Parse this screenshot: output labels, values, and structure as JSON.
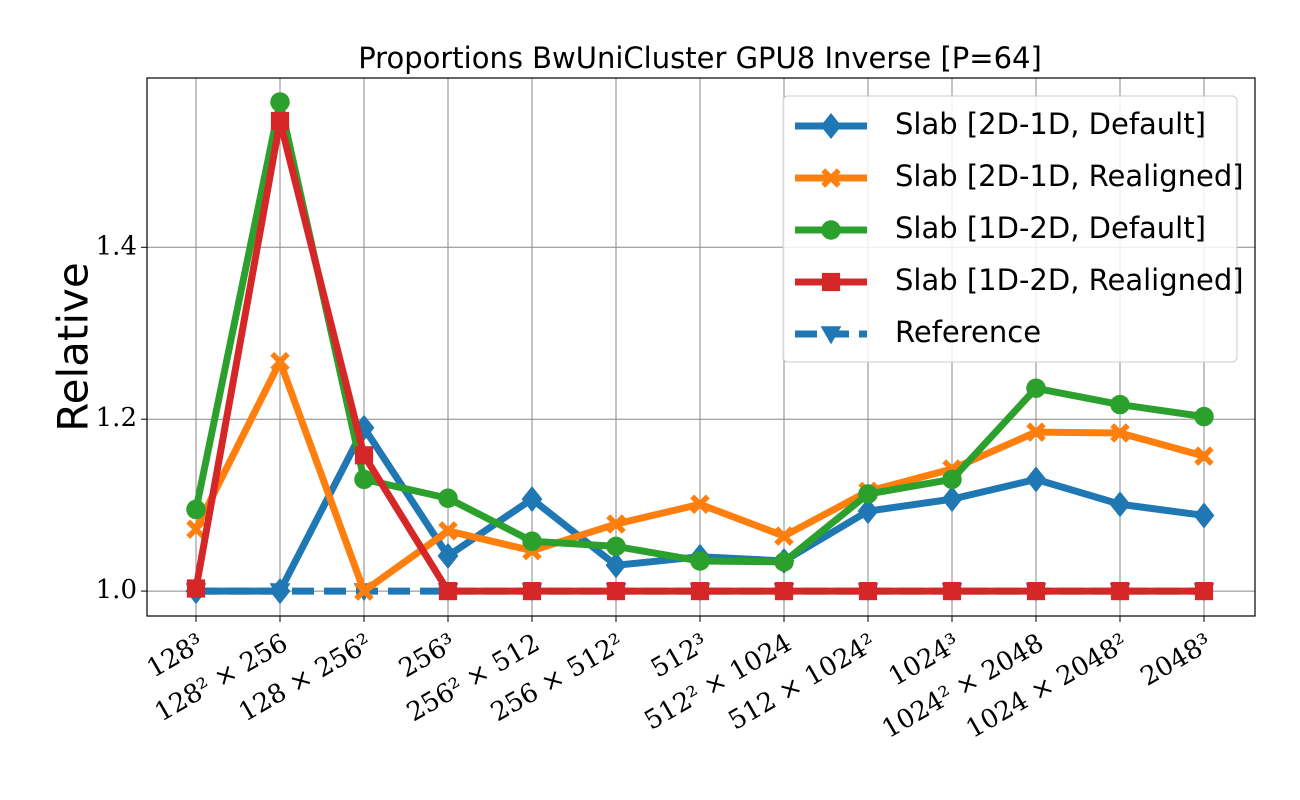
{
  "chart_data": {
    "type": "line",
    "title": "Proportions BwUniCluster GPU8 Inverse [P=64]",
    "ylabel": "Relative",
    "categories": [
      "128³",
      "128² × 256",
      "128 × 256²",
      "256³",
      "256² × 512",
      "256 × 512²",
      "512³",
      "512² × 1024",
      "512 × 1024²",
      "1024³",
      "1024² × 2048",
      "1024 × 2048²",
      "2048³"
    ],
    "ylim": [
      0.971,
      1.597
    ],
    "yticks": [
      {
        "value": 1.0,
        "label": "1.0"
      },
      1.2,
      1.4
    ],
    "grid": true,
    "legend": "upper right",
    "series": [
      {
        "name": "Reference",
        "color": "#1f77b4",
        "marker": "v",
        "linestyle": "dashed",
        "values": [
          1,
          1,
          1,
          1,
          1,
          1,
          1,
          1,
          1,
          1,
          1,
          1,
          1
        ]
      },
      {
        "name": "Slab [2D-1D, Default]",
        "color": "#1f77b4",
        "marker": "D",
        "linestyle": "solid",
        "values": [
          1.0,
          1.0,
          1.19,
          1.041,
          1.107,
          1.03,
          1.04,
          1.035,
          1.093,
          1.107,
          1.13,
          1.101,
          1.088
        ]
      },
      {
        "name": "Slab [2D-1D, Realigned]",
        "color": "#ff7f0e",
        "marker": "X",
        "linestyle": "solid",
        "values": [
          1.072,
          1.267,
          1.0,
          1.07,
          1.047,
          1.078,
          1.101,
          1.064,
          1.116,
          1.142,
          1.185,
          1.184,
          1.157
        ]
      },
      {
        "name": "Slab [1D-2D, Default]",
        "color": "#2ca02c",
        "marker": "o",
        "linestyle": "solid",
        "values": [
          1.095,
          1.569,
          1.13,
          1.108,
          1.058,
          1.052,
          1.035,
          1.034,
          1.113,
          1.13,
          1.236,
          1.217,
          1.203
        ]
      },
      {
        "name": "Slab [1D-2D, Realigned]",
        "color": "#d62728",
        "marker": "s",
        "linestyle": "solid",
        "values": [
          1.003,
          1.547,
          1.158,
          1.0,
          1.0,
          1.0,
          1.0,
          1.0,
          1.0,
          1.0,
          1.0,
          1.0,
          1.0
        ]
      }
    ]
  }
}
